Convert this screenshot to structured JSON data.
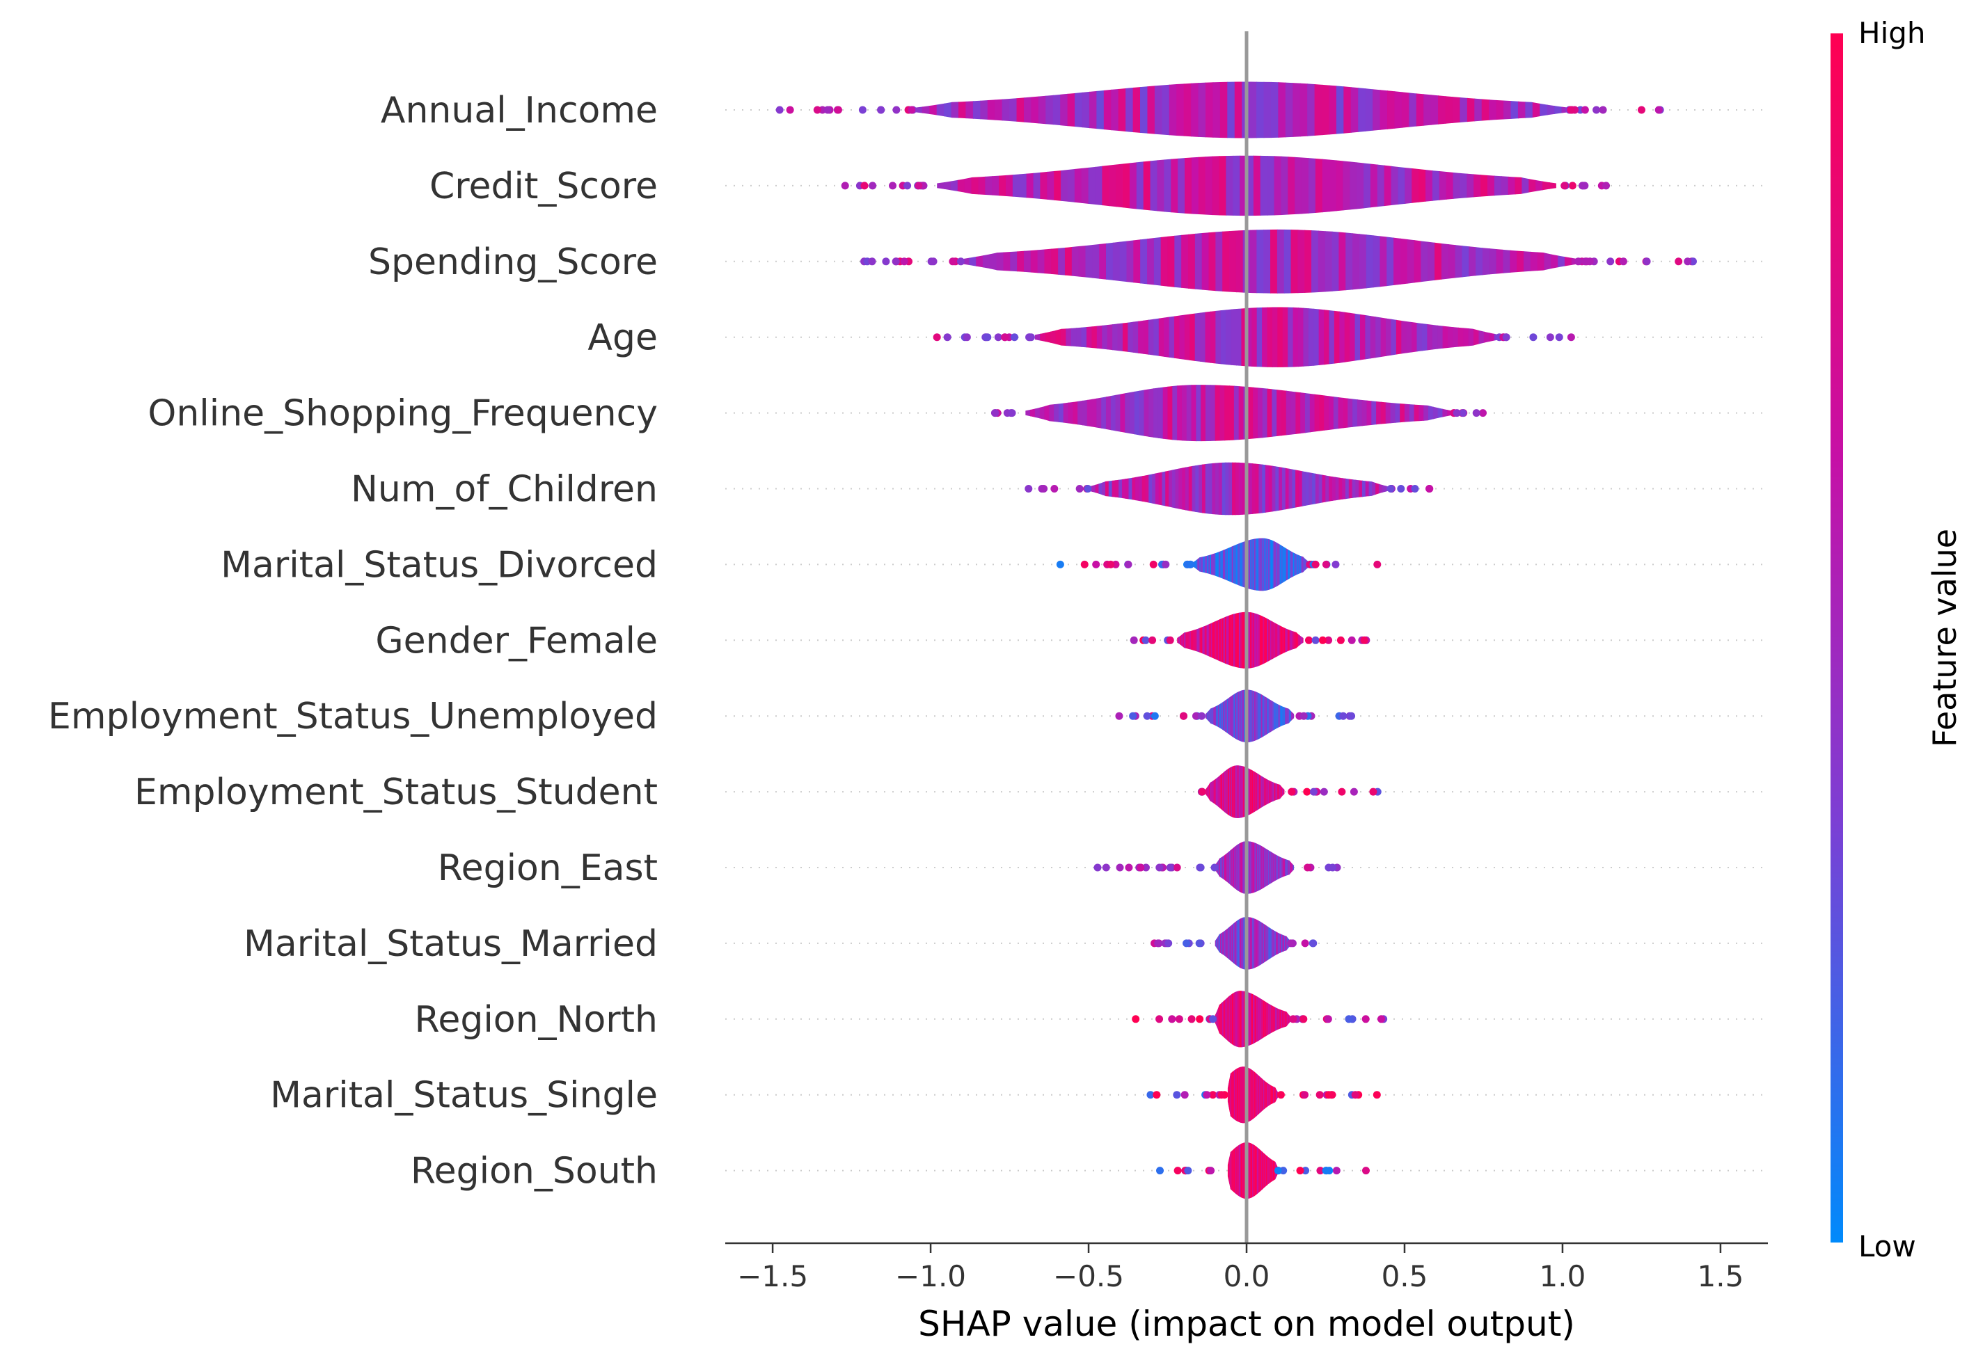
{
  "chart_data": {
    "type": "violin",
    "xlabel": "SHAP value (impact on model output)",
    "xlim": [
      -1.65,
      1.65
    ],
    "xticks": [
      -1.5,
      -1.0,
      -0.5,
      0.0,
      0.5,
      1.0,
      1.5
    ],
    "xtick_labels": [
      "−1.5",
      "−1.0",
      "−0.5",
      "0.0",
      "0.5",
      "1.0",
      "1.5"
    ],
    "colorbar": {
      "title": "Feature value",
      "high_label": "High",
      "low_label": "Low",
      "colors": [
        "#008afb",
        "#7c3fd4",
        "#c610a6",
        "#ff0052"
      ]
    },
    "features": [
      {
        "name": "Annual_Income",
        "range": [
          -1.5,
          1.35
        ],
        "body": [
          -1.05,
          1.02
        ],
        "max_width": 0.75,
        "peak": 0.0,
        "tone": 0.55
      },
      {
        "name": "Credit_Score",
        "range": [
          -1.33,
          1.2
        ],
        "body": [
          -0.98,
          0.98
        ],
        "max_width": 0.8,
        "peak": 0.0,
        "tone": 0.6
      },
      {
        "name": "Spending_Score",
        "range": [
          -1.28,
          1.48
        ],
        "body": [
          -0.9,
          1.05
        ],
        "max_width": 0.85,
        "peak": 0.1,
        "tone": 0.58
      },
      {
        "name": "Age",
        "range": [
          -1.08,
          1.05
        ],
        "body": [
          -0.67,
          0.8
        ],
        "max_width": 0.8,
        "peak": 0.1,
        "tone": 0.6
      },
      {
        "name": "Online_Shopping_Frequency",
        "range": [
          -0.88,
          0.87
        ],
        "body": [
          -0.7,
          0.65
        ],
        "max_width": 0.75,
        "peak": -0.15,
        "tone": 0.58
      },
      {
        "name": "Num_of_Children",
        "range": [
          -0.7,
          0.66
        ],
        "body": [
          -0.5,
          0.45
        ],
        "max_width": 0.7,
        "peak": -0.05,
        "tone": 0.55
      },
      {
        "name": "Marital_Status_Divorced",
        "range": [
          -0.63,
          0.46
        ],
        "body": [
          -0.17,
          0.2
        ],
        "max_width": 0.7,
        "peak": 0.05,
        "tone": 0.2
      },
      {
        "name": "Gender_Female",
        "range": [
          -0.4,
          0.44
        ],
        "body": [
          -0.22,
          0.18
        ],
        "max_width": 0.75,
        "peak": 0.0,
        "tone": 0.8
      },
      {
        "name": "Employment_Status_Unemployed",
        "range": [
          -0.43,
          0.36
        ],
        "body": [
          -0.13,
          0.15
        ],
        "max_width": 0.7,
        "peak": 0.0,
        "tone": 0.3
      },
      {
        "name": "Employment_Status_Student",
        "range": [
          -0.16,
          0.44
        ],
        "body": [
          -0.13,
          0.12
        ],
        "max_width": 0.7,
        "peak": -0.03,
        "tone": 0.75
      },
      {
        "name": "Region_East",
        "range": [
          -0.58,
          0.3
        ],
        "body": [
          -0.1,
          0.15
        ],
        "max_width": 0.7,
        "peak": 0.0,
        "tone": 0.5
      },
      {
        "name": "Marital_Status_Married",
        "range": [
          -0.39,
          0.27
        ],
        "body": [
          -0.1,
          0.14
        ],
        "max_width": 0.7,
        "peak": 0.0,
        "tone": 0.4
      },
      {
        "name": "Region_North",
        "range": [
          -0.36,
          0.44
        ],
        "body": [
          -0.1,
          0.14
        ],
        "max_width": 0.75,
        "peak": -0.02,
        "tone": 0.8
      },
      {
        "name": "Marital_Status_Single",
        "range": [
          -0.33,
          0.42
        ],
        "body": [
          -0.06,
          0.1
        ],
        "max_width": 0.75,
        "peak": -0.01,
        "tone": 0.85
      },
      {
        "name": "Region_South",
        "range": [
          -0.32,
          0.4
        ],
        "body": [
          -0.06,
          0.1
        ],
        "max_width": 0.75,
        "peak": 0.0,
        "tone": 0.85
      }
    ]
  }
}
